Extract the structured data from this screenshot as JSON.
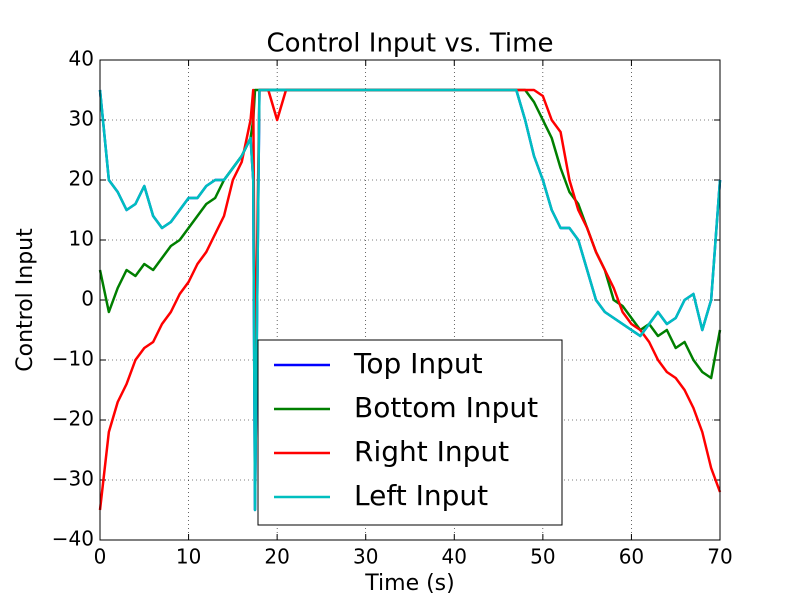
{
  "chart_data": {
    "type": "line",
    "title": "Control Input vs. Time",
    "x_label": "Time (s)",
    "y_label": "Control Input",
    "x": [
      0,
      1,
      2,
      3,
      4,
      5,
      6,
      7,
      8,
      9,
      10,
      11,
      12,
      13,
      14,
      15,
      16,
      17,
      17.3,
      17.5,
      18,
      19,
      20,
      21,
      22,
      23,
      24,
      25,
      26,
      27,
      28,
      29,
      30,
      31,
      32,
      33,
      34,
      35,
      36,
      37,
      38,
      39,
      40,
      41,
      42,
      43,
      44,
      45,
      46,
      47,
      48,
      49,
      50,
      51,
      52,
      53,
      54,
      55,
      56,
      57,
      58,
      59,
      60,
      61,
      62,
      63,
      64,
      65,
      66,
      67,
      68,
      69,
      70
    ],
    "series": [
      {
        "name": "Top Input",
        "color": "#0000ff",
        "values": [
          35,
          20,
          18,
          15,
          16,
          19,
          14,
          12,
          13,
          15,
          17,
          17,
          19,
          20,
          20,
          22,
          24,
          27,
          20,
          -35,
          35,
          35,
          35,
          35,
          35,
          35,
          35,
          35,
          35,
          35,
          35,
          35,
          35,
          35,
          35,
          35,
          35,
          35,
          35,
          35,
          35,
          35,
          35,
          35,
          35,
          35,
          35,
          35,
          35,
          35,
          30,
          24,
          20,
          15,
          12,
          12,
          10,
          5,
          0,
          -2,
          -3,
          -4,
          -5,
          -6,
          -4,
          -2,
          -4,
          -3,
          0,
          1,
          -5,
          0,
          20
        ]
      },
      {
        "name": "Bottom Input",
        "color": "#007f00",
        "values": [
          5,
          -2,
          2,
          5,
          4,
          6,
          5,
          7,
          9,
          10,
          12,
          14,
          16,
          17,
          20,
          22,
          24,
          27,
          30,
          35,
          35,
          35,
          35,
          35,
          35,
          35,
          35,
          35,
          35,
          35,
          35,
          35,
          35,
          35,
          35,
          35,
          35,
          35,
          35,
          35,
          35,
          35,
          35,
          35,
          35,
          35,
          35,
          35,
          35,
          35,
          35,
          33,
          30,
          27,
          22,
          18,
          16,
          12,
          8,
          5,
          0,
          -1,
          -3,
          -5,
          -4,
          -6,
          -5,
          -8,
          -7,
          -10,
          -12,
          -13,
          -5
        ]
      },
      {
        "name": "Right Input",
        "color": "#ff0000",
        "values": [
          -35,
          -22,
          -17,
          -14,
          -10,
          -8,
          -7,
          -4,
          -2,
          1,
          3,
          6,
          8,
          11,
          14,
          20,
          23,
          30,
          35,
          -15,
          35,
          35,
          30,
          35,
          35,
          35,
          35,
          35,
          35,
          35,
          35,
          35,
          35,
          35,
          35,
          35,
          35,
          35,
          35,
          35,
          35,
          35,
          35,
          35,
          35,
          35,
          35,
          35,
          35,
          35,
          35,
          35,
          34,
          30,
          28,
          20,
          15,
          12,
          8,
          5,
          2,
          -2,
          -4,
          -5,
          -7,
          -10,
          -12,
          -13,
          -15,
          -18,
          -22,
          -28,
          -32
        ]
      },
      {
        "name": "Left Input",
        "color": "#00bfbf",
        "values": [
          35,
          20,
          18,
          15,
          16,
          19,
          14,
          12,
          13,
          15,
          17,
          17,
          19,
          20,
          20,
          22,
          24,
          27,
          20,
          -35,
          35,
          35,
          35,
          35,
          35,
          35,
          35,
          35,
          35,
          35,
          35,
          35,
          35,
          35,
          35,
          35,
          35,
          35,
          35,
          35,
          35,
          35,
          35,
          35,
          35,
          35,
          35,
          35,
          35,
          35,
          30,
          24,
          20,
          15,
          12,
          12,
          10,
          5,
          0,
          -2,
          -3,
          -4,
          -5,
          -6,
          -4,
          -2,
          -4,
          -3,
          0,
          1,
          -5,
          0,
          20
        ]
      }
    ],
    "xlim": [
      0,
      70
    ],
    "xticks": [
      0,
      10,
      20,
      30,
      40,
      50,
      60,
      70
    ],
    "ylim": [
      -40,
      40
    ],
    "yticks": [
      {
        "value": -40,
        "label": "−40"
      },
      {
        "value": -30,
        "label": "−30"
      },
      {
        "value": -20,
        "label": "−20"
      },
      {
        "value": -10,
        "label": "−10"
      },
      0,
      10,
      20,
      30,
      40
    ],
    "grid": true,
    "legend": "lower center"
  }
}
